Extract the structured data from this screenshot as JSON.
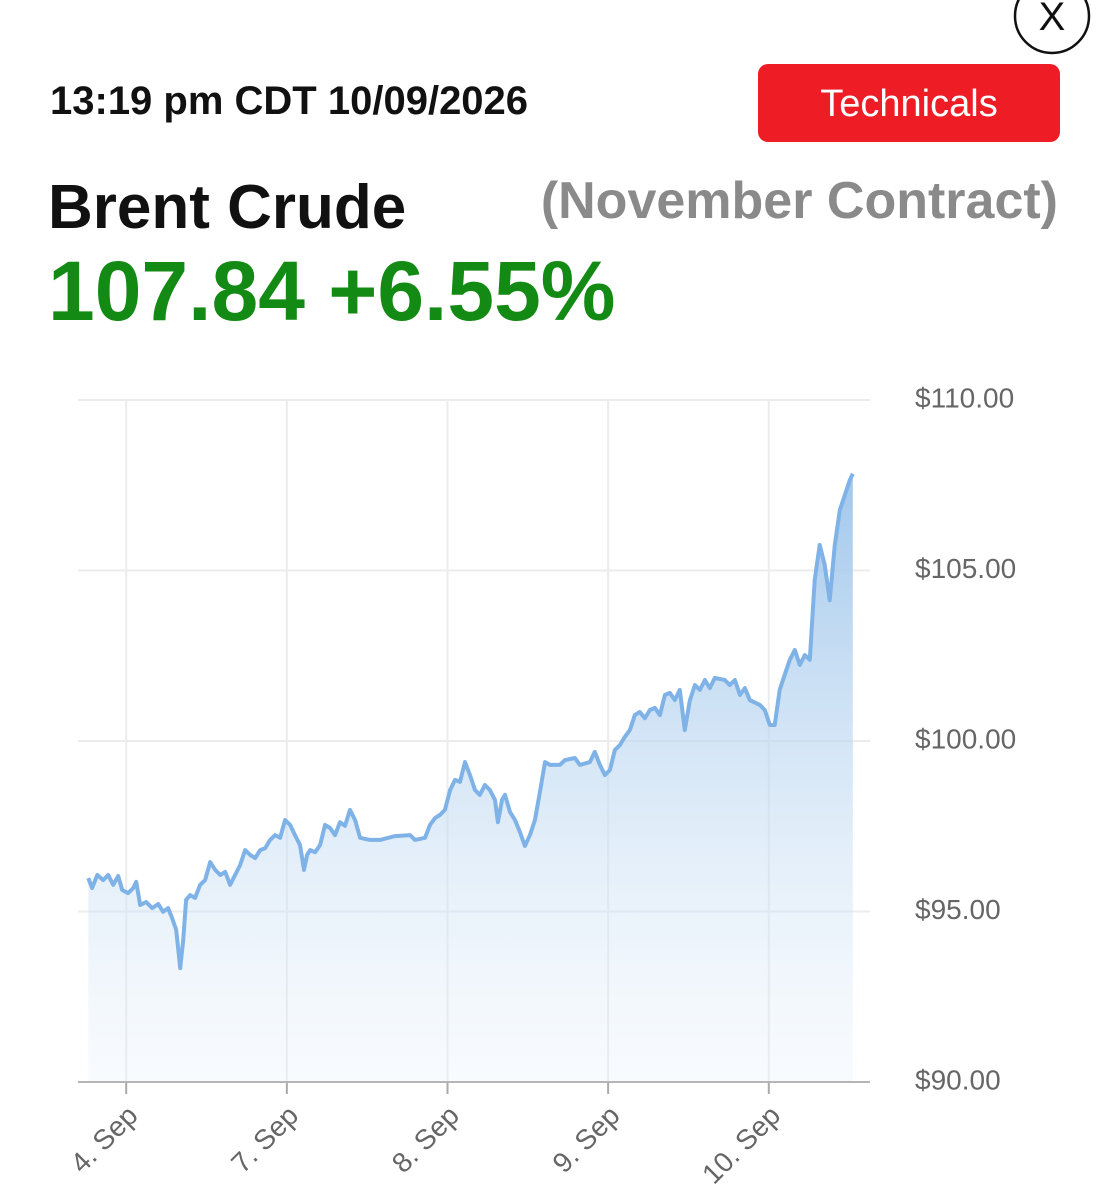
{
  "header": {
    "time": "13:19 pm CDT 10/09/2026",
    "button": "Technicals",
    "close": "X",
    "title": "Brent Crude",
    "subtitle": "(November Contract)",
    "price": "107.84",
    "change": "+6.55%"
  },
  "chart_data": {
    "type": "area",
    "color": "#7fb2e6",
    "grid": true,
    "xlim": [
      -0.3,
      4.63
    ],
    "xticks": [
      {
        "value": 0,
        "label": "4. Sep"
      },
      {
        "value": 1,
        "label": "7. Sep"
      },
      {
        "value": 2,
        "label": "8. Sep"
      },
      {
        "value": 3,
        "label": "9. Sep"
      },
      {
        "value": 4,
        "label": "10. Sep"
      }
    ],
    "ylim": [
      90,
      110
    ],
    "yticks": [
      {
        "value": 90,
        "label": "$90.00"
      },
      {
        "value": 95,
        "label": "$95.00"
      },
      {
        "value": 100,
        "label": "$100.00"
      },
      {
        "value": 105,
        "label": "$105.00"
      },
      {
        "value": 110,
        "label": "$110.00"
      }
    ],
    "x": [
      -0.236,
      -0.212,
      -0.18,
      -0.143,
      -0.112,
      -0.081,
      -0.05,
      -0.025,
      0.012,
      0.044,
      0.062,
      0.087,
      0.124,
      0.162,
      0.199,
      0.23,
      0.261,
      0.286,
      0.311,
      0.336,
      0.355,
      0.373,
      0.398,
      0.429,
      0.46,
      0.491,
      0.523,
      0.554,
      0.585,
      0.616,
      0.647,
      0.678,
      0.709,
      0.74,
      0.771,
      0.803,
      0.834,
      0.865,
      0.896,
      0.927,
      0.958,
      0.989,
      1.02,
      1.051,
      1.082,
      1.107,
      1.126,
      1.145,
      1.176,
      1.207,
      1.238,
      1.269,
      1.3,
      1.331,
      1.362,
      1.393,
      1.425,
      1.456,
      1.518,
      1.58,
      1.673,
      1.767,
      1.798,
      1.86,
      1.891,
      1.922,
      1.953,
      1.984,
      2.016,
      2.047,
      2.078,
      2.109,
      2.14,
      2.171,
      2.202,
      2.233,
      2.264,
      2.296,
      2.314,
      2.339,
      2.358,
      2.389,
      2.42,
      2.451,
      2.482,
      2.513,
      2.544,
      2.575,
      2.607,
      2.638,
      2.7,
      2.731,
      2.793,
      2.824,
      2.886,
      2.917,
      2.949,
      2.98,
      3.011,
      3.042,
      3.073,
      3.104,
      3.135,
      3.166,
      3.197,
      3.229,
      3.26,
      3.291,
      3.322,
      3.353,
      3.384,
      3.415,
      3.446,
      3.477,
      3.509,
      3.54,
      3.571,
      3.602,
      3.633,
      3.664,
      3.726,
      3.757,
      3.789,
      3.82,
      3.851,
      3.882,
      3.944,
      3.975,
      4.006,
      4.037,
      4.068,
      4.099,
      4.131,
      4.162,
      4.193,
      4.224,
      4.255,
      4.286,
      4.317,
      4.348,
      4.379,
      4.411,
      4.442,
      4.473,
      4.504,
      4.523
    ],
    "values": [
      95.98,
      95.69,
      96.07,
      95.92,
      96.07,
      95.78,
      96.04,
      95.63,
      95.54,
      95.69,
      95.87,
      95.19,
      95.28,
      95.1,
      95.22,
      94.99,
      95.1,
      94.81,
      94.46,
      93.34,
      94.16,
      95.34,
      95.48,
      95.4,
      95.78,
      95.92,
      96.45,
      96.22,
      96.07,
      96.16,
      95.78,
      96.07,
      96.36,
      96.8,
      96.66,
      96.57,
      96.8,
      96.86,
      97.1,
      97.24,
      97.16,
      97.68,
      97.54,
      97.24,
      96.95,
      96.22,
      96.66,
      96.8,
      96.74,
      96.95,
      97.54,
      97.45,
      97.24,
      97.62,
      97.51,
      97.98,
      97.68,
      97.16,
      97.1,
      97.1,
      97.21,
      97.24,
      97.1,
      97.16,
      97.54,
      97.74,
      97.83,
      97.98,
      98.56,
      98.86,
      98.8,
      99.38,
      99.0,
      98.56,
      98.42,
      98.71,
      98.56,
      98.27,
      97.62,
      98.27,
      98.42,
      97.92,
      97.68,
      97.33,
      96.92,
      97.24,
      97.68,
      98.5,
      99.38,
      99.3,
      99.3,
      99.44,
      99.5,
      99.3,
      99.38,
      99.68,
      99.3,
      99.0,
      99.15,
      99.74,
      99.88,
      100.12,
      100.32,
      100.76,
      100.85,
      100.67,
      100.91,
      100.97,
      100.76,
      101.35,
      101.41,
      101.2,
      101.5,
      100.32,
      101.2,
      101.64,
      101.5,
      101.79,
      101.55,
      101.85,
      101.79,
      101.64,
      101.79,
      101.35,
      101.55,
      101.2,
      101.06,
      100.91,
      100.47,
      100.47,
      101.5,
      101.94,
      102.38,
      102.67,
      102.23,
      102.52,
      102.38,
      104.72,
      105.75,
      105.16,
      104.13,
      105.75,
      106.77,
      107.21,
      107.65,
      107.84
    ]
  }
}
